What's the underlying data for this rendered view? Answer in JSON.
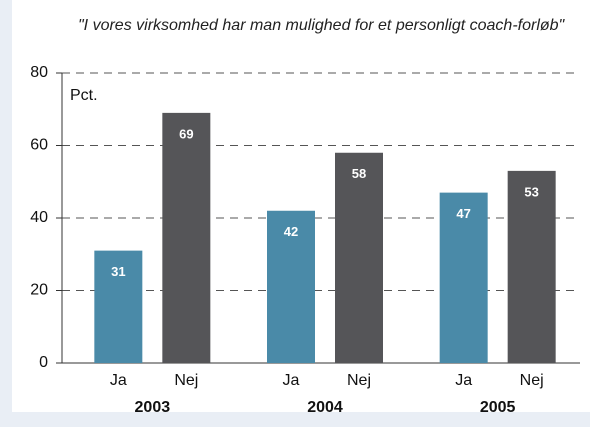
{
  "chart_data": {
    "type": "bar",
    "title": "\"I vores virksomhed har man mulighed for et personligt coach-forløb\"",
    "y_label": "Pct.",
    "categories": [
      "2003",
      "2004",
      "2005"
    ],
    "series": [
      {
        "name": "Ja",
        "color": "#4a8aa8",
        "values": [
          31,
          42,
          47
        ]
      },
      {
        "name": "Nej",
        "color": "#555558",
        "values": [
          69,
          58,
          53
        ]
      }
    ],
    "ylim": [
      0,
      80
    ],
    "yticks": [
      0,
      20,
      40,
      60,
      80
    ],
    "grid": true
  }
}
